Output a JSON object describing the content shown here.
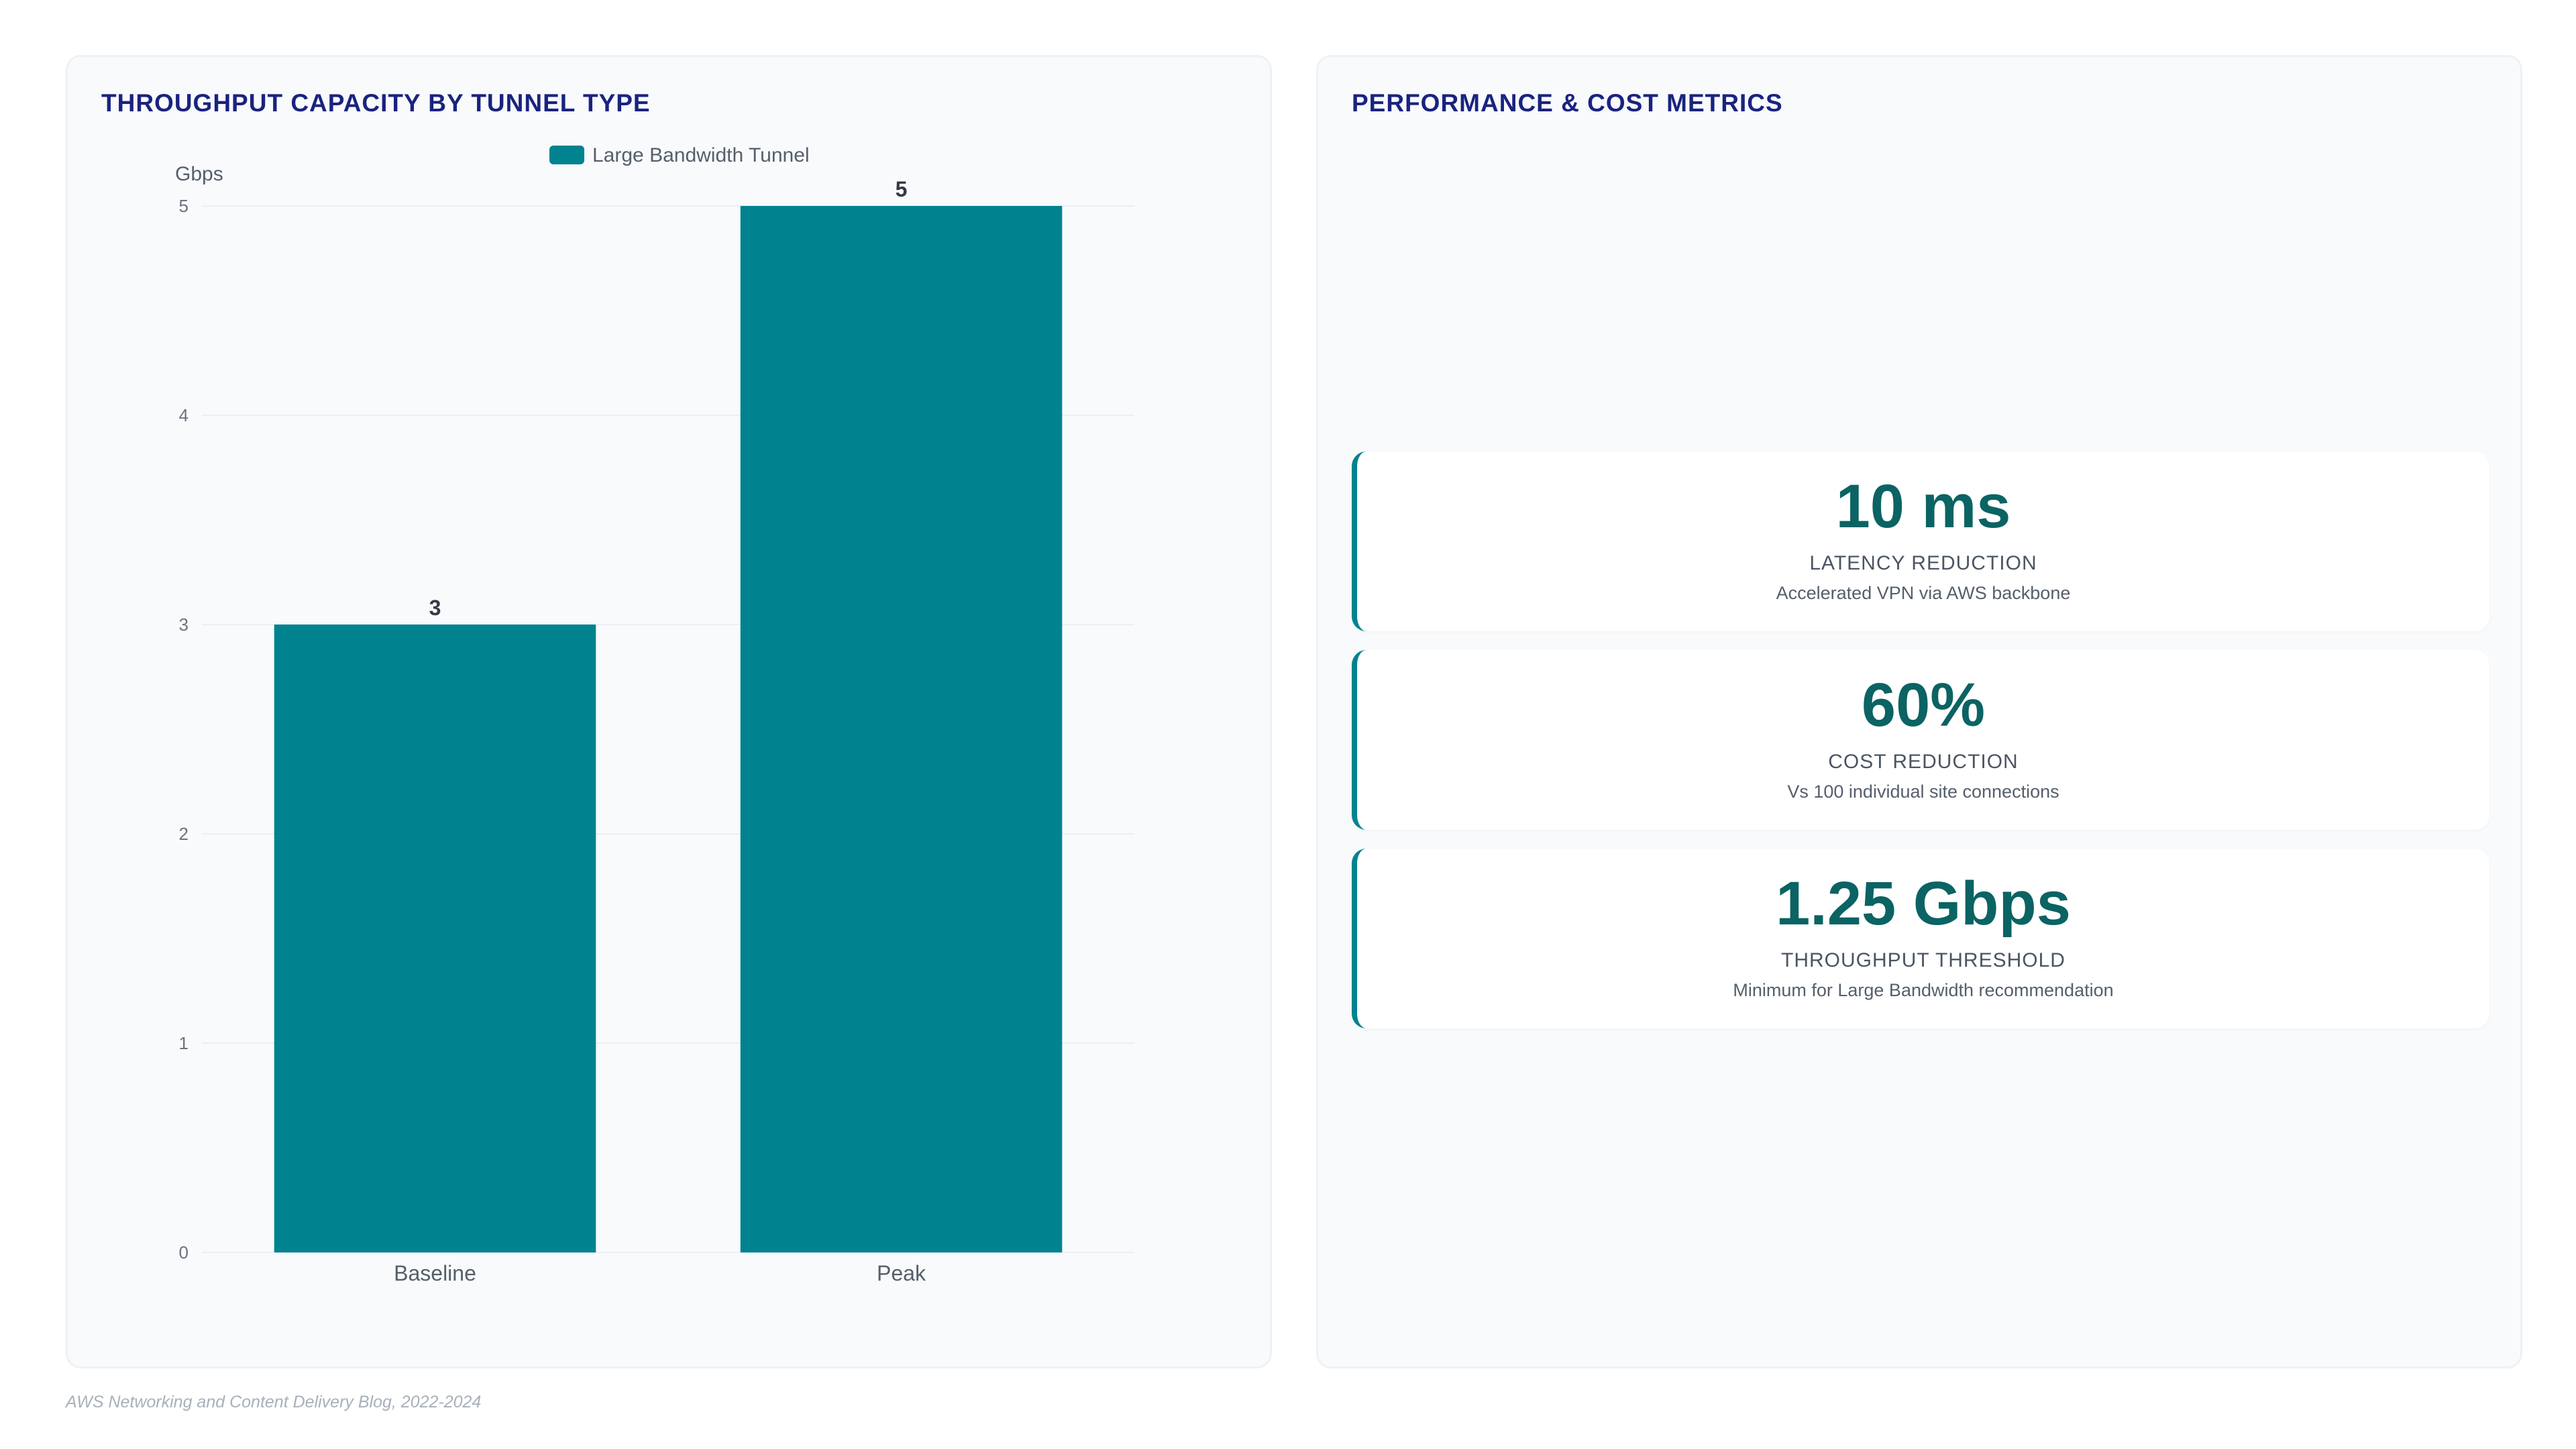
{
  "left_panel": {
    "title": "THROUGHPUT CAPACITY BY TUNNEL TYPE"
  },
  "right_panel": {
    "title": "PERFORMANCE & COST METRICS"
  },
  "chart_data": {
    "type": "bar",
    "ylabel": "Gbps",
    "xlabel": "",
    "categories": [
      "Baseline",
      "Peak"
    ],
    "series": [
      {
        "name": "Large Bandwidth Tunnel",
        "values": [
          3,
          5
        ],
        "color": "#00838f"
      }
    ],
    "ylim": [
      0,
      5
    ],
    "yticks": [
      0,
      1,
      2,
      3,
      4,
      5
    ],
    "data_labels": true,
    "grid": true,
    "legend": "top-center"
  },
  "metrics": [
    {
      "value": "10 ms",
      "label": "LATENCY REDUCTION",
      "desc": "Accelerated VPN via AWS backbone"
    },
    {
      "value": "60%",
      "label": "COST REDUCTION",
      "desc": "Vs 100 individual site connections"
    },
    {
      "value": "1.25 Gbps",
      "label": "THROUGHPUT THRESHOLD",
      "desc": "Minimum for Large Bandwidth recommendation"
    }
  ],
  "footer": {
    "source": "AWS Networking and Content Delivery Blog, 2022-2024"
  },
  "colors": {
    "accent": "#00838f",
    "title": "#1a237e",
    "metric_value": "#0b6363"
  }
}
